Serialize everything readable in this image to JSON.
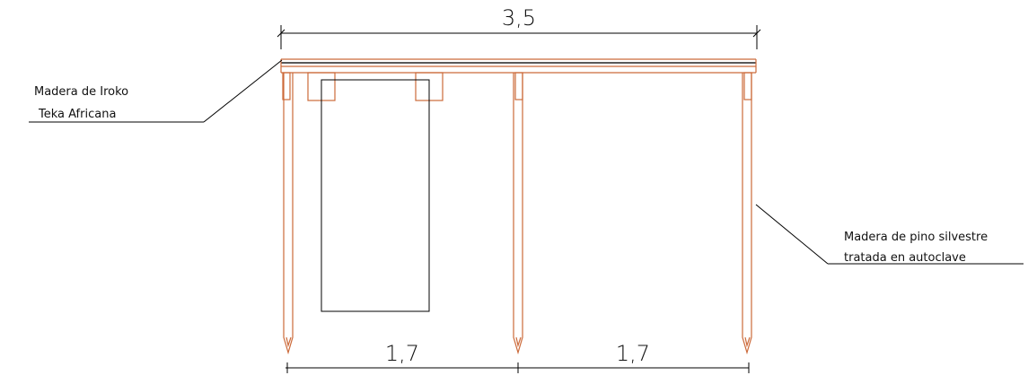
{
  "dimensions": {
    "total": "3,5",
    "left_span": "1,7",
    "right_span": "1,7"
  },
  "labels": {
    "left": {
      "line1": "Madera de Iroko",
      "line2": "Teka Africana"
    },
    "right": {
      "line1": "Madera de pino silvestre",
      "line2": "tratada en autoclave"
    }
  },
  "colors": {
    "wood": "#cc6a3a",
    "ink": "#000000",
    "background": "#ffffff"
  }
}
